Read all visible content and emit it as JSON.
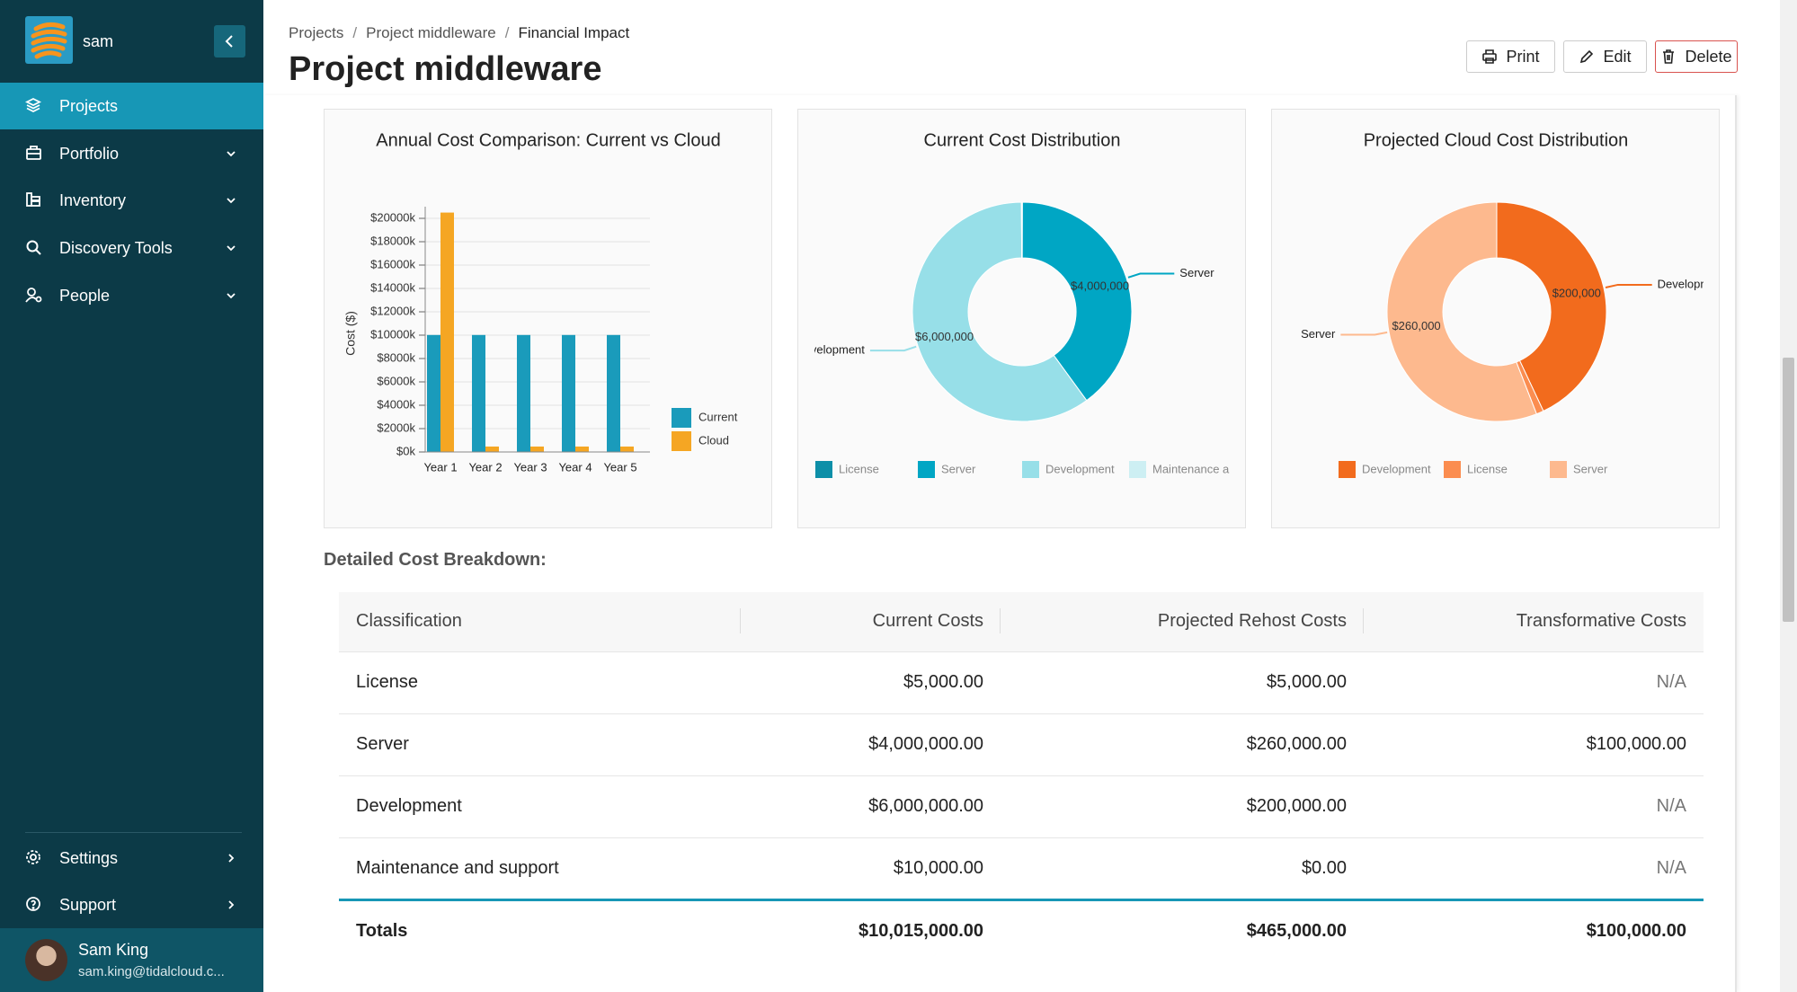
{
  "sidebar": {
    "brand": "sam",
    "nav": [
      "Projects",
      "Portfolio",
      "Inventory",
      "Discovery Tools",
      "People"
    ],
    "footer_nav": [
      "Settings",
      "Support"
    ],
    "user": {
      "name": "Sam King",
      "email": "sam.king@tidalcloud.c..."
    }
  },
  "header": {
    "breadcrumb": [
      "Projects",
      "Project middleware",
      "Financial Impact"
    ],
    "title": "Project middleware",
    "actions": [
      "Print",
      "Edit",
      "Delete"
    ]
  },
  "chart_data": [
    {
      "type": "bar",
      "title": "Annual Cost Comparison: Current vs Cloud",
      "y_label": "Cost ($)",
      "categories": [
        "Year 1",
        "Year 2",
        "Year 3",
        "Year 4",
        "Year 5"
      ],
      "series": [
        {
          "name": "Current",
          "color": "#1a9bbb",
          "values": [
            10015,
            10015,
            10015,
            10015,
            10015
          ]
        },
        {
          "name": "Cloud",
          "color": "#f5a623",
          "values": [
            20495,
            465,
            465,
            465,
            465
          ]
        }
      ],
      "ylim": [
        0,
        21000
      ],
      "yticks": [
        {
          "value": 0,
          "label": "$0k"
        },
        {
          "value": 2000,
          "label": "$2000k"
        },
        {
          "value": 4000,
          "label": "$4000k"
        },
        {
          "value": 6000,
          "label": "$6000k"
        },
        {
          "value": 8000,
          "label": "$8000k"
        },
        {
          "value": 10000,
          "label": "$10000k"
        },
        {
          "value": 12000,
          "label": "$12000k"
        },
        {
          "value": 14000,
          "label": "$14000k"
        },
        {
          "value": 16000,
          "label": "$16000k"
        },
        {
          "value": 18000,
          "label": "$18000k"
        },
        {
          "value": 20000,
          "label": "$20000k"
        }
      ],
      "grid": true,
      "legend": "right"
    },
    {
      "type": "donut",
      "title": "Current Cost Distribution",
      "categories": [
        "License",
        "Server",
        "Development",
        "Maintenance and support"
      ],
      "values": [
        5000,
        4000000,
        6000000,
        10000
      ],
      "value_labels": [
        null,
        "$4,000,000",
        "$6,000,000",
        null
      ],
      "colors": [
        "#0d8fa8",
        "#00a6c4",
        "#97dfe8",
        "#cdeff3"
      ],
      "legend": "bottom"
    },
    {
      "type": "donut",
      "title": "Projected Cloud Cost Distribution",
      "categories": [
        "Development",
        "License",
        "Server"
      ],
      "values": [
        200000,
        5000,
        260000
      ],
      "value_labels": [
        "$200,000",
        null,
        "$260,000"
      ],
      "colors": [
        "#f26b1d",
        "#fb8d50",
        "#fdb98e"
      ],
      "legend": "bottom"
    }
  ],
  "section_title": "Detailed Cost Breakdown:",
  "table": {
    "headers": [
      "Classification",
      "Current Costs",
      "Projected Rehost Costs",
      "Transformative Costs"
    ],
    "rows": [
      [
        "License",
        "$5,000.00",
        "$5,000.00",
        "N/A"
      ],
      [
        "Server",
        "$4,000,000.00",
        "$260,000.00",
        "$100,000.00"
      ],
      [
        "Development",
        "$6,000,000.00",
        "$200,000.00",
        "N/A"
      ],
      [
        "Maintenance and support",
        "$10,000.00",
        "$0.00",
        "N/A"
      ]
    ],
    "totals": [
      "Totals",
      "$10,015,000.00",
      "$465,000.00",
      "$100,000.00"
    ]
  }
}
